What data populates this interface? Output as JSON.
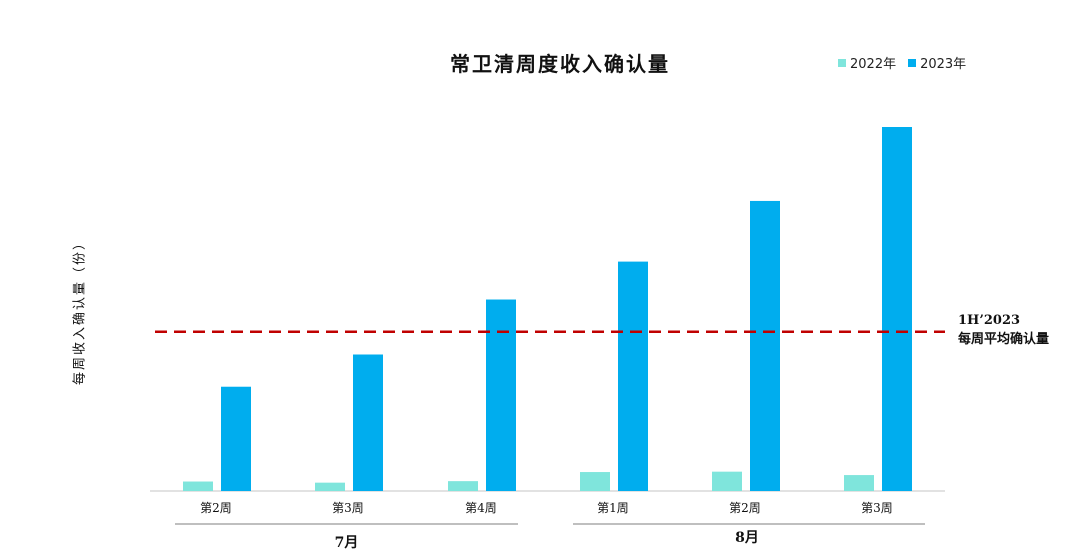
{
  "chart_data": {
    "type": "bar",
    "title": "常卫清周度收入确认量",
    "ylabel": "每周收入确认量（份）",
    "xlabel": "",
    "categories": [
      "第2周",
      "第3周",
      "第4周",
      "第1周",
      "第2周",
      "第3周"
    ],
    "category_groups": [
      {
        "label": "7月",
        "members": [
          "第2周",
          "第3周",
          "第4周"
        ]
      },
      {
        "label": "8月",
        "members": [
          "第1周",
          "第2周",
          "第3周"
        ]
      }
    ],
    "series": [
      {
        "name": "2022年",
        "color": "#7fe5dc",
        "values": [
          2.5,
          2.2,
          2.6,
          5.0,
          5.1,
          4.2
        ]
      },
      {
        "name": "2023年",
        "color": "#00adee",
        "values": [
          27.5,
          36.0,
          50.5,
          60.5,
          76.5,
          96.0
        ]
      }
    ],
    "reference_line": {
      "value": 42.0,
      "color": "#c00000",
      "style": "dashed",
      "label_line1": "1H’2023",
      "label_line2": "每周平均确认量"
    },
    "ylim": [
      0,
      100
    ],
    "grid": false,
    "legend_position": "top-right"
  }
}
